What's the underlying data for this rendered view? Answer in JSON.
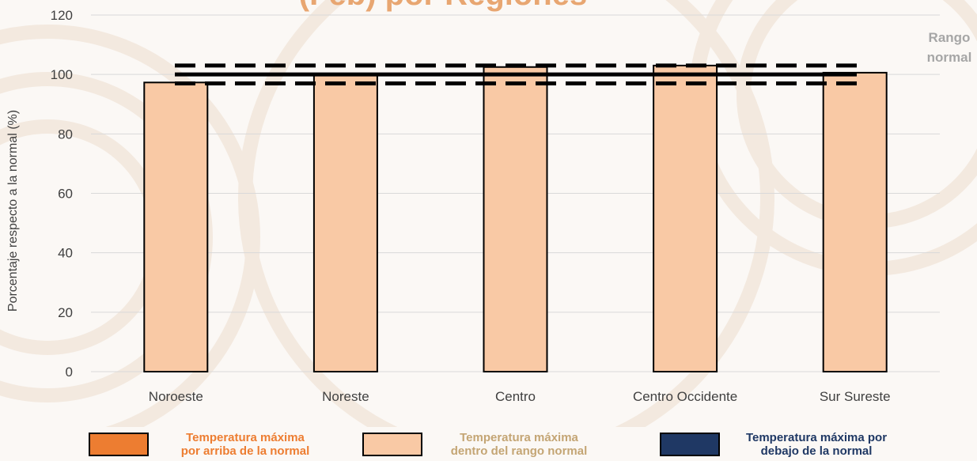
{
  "chart_data": {
    "type": "bar",
    "title": "(Feb) por Regiones",
    "categories": [
      "Noroeste",
      "Noreste",
      "Centro",
      "Centro Occidente",
      "Sur Sureste"
    ],
    "values": [
      97.3,
      99.8,
      102.5,
      103.0,
      100.6
    ],
    "ylabel": "Porcentaje respecto a la normal (%)",
    "xlabel": "",
    "ylim": [
      0,
      120
    ],
    "yticks": [
      0,
      20,
      40,
      60,
      80,
      100,
      120
    ],
    "grid": true,
    "reference_lines": {
      "normal": 100,
      "range_upper": 103,
      "range_lower": 97,
      "label": "Rango normal"
    },
    "colors": {
      "bar_fill": "#f9c9a5",
      "bar_stroke": "#000000",
      "above": "#ed7d31",
      "within": "#f9c9a5",
      "below": "#1f3864",
      "title": "#e8a671",
      "grid": "#d9d9d9",
      "range_label": "#a6a6a6"
    },
    "legend": {
      "placement": "bottom",
      "items": [
        {
          "label_line1": "Temperatura máxima",
          "label_line2": "por arriba de la normal",
          "color": "#ed7d31",
          "text_color": "#ed7d31"
        },
        {
          "label_line1": "Temperatura máxima",
          "label_line2": "dentro del rango normal",
          "color": "#f9c9a5",
          "text_color": "#c4a574"
        },
        {
          "label_line1": "Temperatura máxima por",
          "label_line2": "debajo de la normal",
          "color": "#1f3864",
          "text_color": "#1f3864"
        }
      ]
    }
  }
}
